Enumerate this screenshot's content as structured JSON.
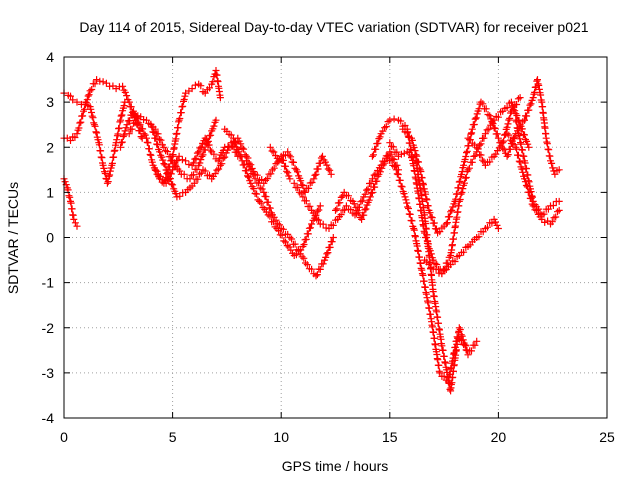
{
  "chart_data": {
    "type": "scatter",
    "title": "Day 114 of 2015, Sidereal Day-to-day VTEC variation (SDTVAR) for receiver p021",
    "xlabel": "GPS time / hours",
    "ylabel": "SDTVAR / TECUs",
    "xlim": [
      0,
      25
    ],
    "ylim": [
      -4,
      4
    ],
    "xticks": [
      "0",
      "5",
      "10",
      "15",
      "20",
      "25"
    ],
    "yticks": [
      "-4",
      "-3",
      "-2",
      "-1",
      "0",
      "1",
      "2",
      "3",
      "4"
    ],
    "grid": true,
    "legend": "none",
    "marker": "plus",
    "color": "#ff0000",
    "series": [
      {
        "x": [
          0.0,
          0.15,
          0.3,
          0.45,
          0.6
        ],
        "y": [
          1.3,
          1.1,
          0.8,
          0.4,
          0.25
        ]
      },
      {
        "x": [
          0.0,
          0.2,
          0.4,
          0.6,
          0.8,
          1.0,
          1.2,
          1.4,
          1.6,
          1.8,
          2.0,
          2.2,
          2.4,
          2.6,
          2.8
        ],
        "y": [
          3.2,
          3.15,
          3.05,
          3.0,
          2.95,
          3.0,
          2.9,
          2.5,
          2.1,
          1.6,
          1.2,
          1.6,
          2.1,
          2.6,
          3.0
        ]
      },
      {
        "x": [
          0.0,
          0.3,
          0.6,
          0.9,
          1.2,
          1.5,
          1.8,
          2.1,
          2.4,
          2.7,
          3.0,
          3.3,
          3.6
        ],
        "y": [
          2.2,
          2.15,
          2.3,
          2.8,
          3.25,
          3.5,
          3.45,
          3.35,
          3.3,
          3.35,
          3.0,
          2.6,
          2.2
        ]
      },
      {
        "x": [
          2.6,
          2.9,
          3.2,
          3.5,
          3.8,
          4.1,
          4.4,
          4.7,
          5.0,
          5.3,
          5.6,
          5.9,
          6.2,
          6.5,
          6.8,
          7.1,
          7.4,
          7.7,
          8.0
        ],
        "y": [
          2.0,
          2.5,
          2.8,
          2.5,
          2.2,
          1.6,
          1.3,
          1.2,
          1.5,
          1.8,
          1.7,
          1.6,
          1.9,
          2.2,
          1.9,
          1.7,
          2.0,
          2.1,
          1.8
        ]
      },
      {
        "x": [
          3.0,
          3.4,
          3.8,
          4.2,
          4.6,
          5.0,
          5.4,
          5.8,
          6.2,
          6.6,
          7.0
        ],
        "y": [
          2.3,
          2.7,
          2.6,
          2.4,
          2.0,
          1.7,
          1.4,
          1.3,
          1.6,
          2.1,
          2.6
        ]
      },
      {
        "x": [
          4.2,
          4.6,
          5.0,
          5.3,
          5.6,
          5.9,
          6.2,
          6.5,
          6.8,
          7.0,
          7.2
        ],
        "y": [
          1.5,
          1.2,
          1.8,
          2.6,
          3.2,
          3.3,
          3.4,
          3.2,
          3.4,
          3.7,
          3.1
        ]
      },
      {
        "x": [
          4.0,
          4.4,
          4.8,
          5.2,
          5.6,
          6.0,
          6.4,
          6.8,
          7.2,
          7.6,
          8.0,
          8.4,
          8.8,
          9.2,
          9.6,
          10.0,
          10.4
        ],
        "y": [
          2.5,
          1.9,
          1.4,
          0.9,
          1.0,
          1.2,
          1.5,
          1.3,
          1.6,
          2.0,
          2.2,
          1.8,
          1.4,
          1.2,
          1.5,
          1.8,
          1.3
        ]
      },
      {
        "x": [
          7.4,
          7.8,
          8.2,
          8.6,
          9.0,
          9.4,
          9.8,
          10.2,
          10.6,
          11.0,
          11.4,
          11.8
        ],
        "y": [
          2.4,
          2.2,
          1.7,
          1.2,
          0.8,
          0.5,
          0.2,
          -0.1,
          -0.4,
          -0.2,
          0.3,
          0.7
        ]
      },
      {
        "x": [
          8.4,
          8.8,
          9.2,
          9.6,
          10.0,
          10.4,
          10.8,
          11.2,
          11.6,
          12.0,
          12.4
        ],
        "y": [
          1.7,
          1.3,
          1.0,
          0.5,
          0.2,
          0.0,
          -0.3,
          -0.6,
          -0.85,
          -0.5,
          0.0
        ]
      },
      {
        "x": [
          9.5,
          9.9,
          10.3,
          10.7,
          11.1,
          11.5,
          11.9,
          12.3
        ],
        "y": [
          2.0,
          1.7,
          1.9,
          1.5,
          1.0,
          1.3,
          1.8,
          1.4
        ]
      },
      {
        "x": [
          10.6,
          11.0,
          11.4,
          11.8,
          12.2,
          12.6,
          13.0,
          13.4,
          13.8,
          14.2,
          14.6,
          15.0,
          15.4
        ],
        "y": [
          1.2,
          0.9,
          0.6,
          0.3,
          0.2,
          0.4,
          0.7,
          0.5,
          0.9,
          1.3,
          1.6,
          1.9,
          1.5
        ]
      },
      {
        "x": [
          12.5,
          12.9,
          13.3,
          13.7,
          14.1,
          14.5,
          14.9,
          15.3,
          15.7,
          16.1,
          16.5,
          16.9,
          17.3,
          17.7,
          18.1,
          18.5
        ],
        "y": [
          0.6,
          1.0,
          0.8,
          0.4,
          0.9,
          1.4,
          1.8,
          1.5,
          0.9,
          0.2,
          -0.8,
          -1.8,
          -3.0,
          -3.2,
          -2.2,
          -2.4
        ]
      },
      {
        "x": [
          14.2,
          14.6,
          15.0,
          15.4,
          15.8,
          16.2,
          16.6,
          17.0,
          17.4,
          17.8,
          18.2,
          18.6,
          19.0,
          19.4,
          19.8,
          20.0
        ],
        "y": [
          1.8,
          2.3,
          2.6,
          2.6,
          2.4,
          1.3,
          0.1,
          -0.5,
          -0.8,
          -0.6,
          -0.4,
          -0.2,
          0.0,
          0.2,
          0.4,
          0.2
        ]
      },
      {
        "x": [
          15.0,
          15.4,
          15.8,
          16.2,
          16.6,
          17.0,
          17.4,
          17.8,
          18.2,
          18.6,
          19.0
        ],
        "y": [
          2.1,
          1.8,
          1.9,
          1.7,
          0.5,
          -1.2,
          -2.4,
          -3.4,
          -2.0,
          -2.6,
          -2.3
        ]
      },
      {
        "x": [
          15.6,
          16.0,
          16.4,
          16.8,
          17.2,
          17.6,
          18.0,
          18.4,
          18.8,
          19.2,
          19.6,
          20.0,
          20.4,
          20.8,
          21.2
        ],
        "y": [
          2.4,
          2.2,
          1.5,
          0.6,
          0.1,
          0.3,
          0.8,
          1.6,
          2.4,
          3.0,
          2.7,
          2.2,
          1.8,
          2.3,
          2.6
        ]
      },
      {
        "x": [
          16.6,
          17.0,
          17.4,
          17.8,
          18.2,
          18.6,
          19.0,
          19.4,
          19.8,
          20.2,
          20.6,
          21.0,
          21.4
        ],
        "y": [
          -0.5,
          -0.7,
          -0.8,
          -0.4,
          0.8,
          1.5,
          1.9,
          2.3,
          2.6,
          2.8,
          3.0,
          2.5,
          2.0
        ]
      },
      {
        "x": [
          18.6,
          19.0,
          19.4,
          19.8,
          20.2,
          20.6,
          21.0
        ],
        "y": [
          2.2,
          2.0,
          1.6,
          1.8,
          2.1,
          2.8,
          3.1
        ]
      },
      {
        "x": [
          20.4,
          20.8,
          21.2,
          21.6,
          22.0,
          22.4,
          22.8
        ],
        "y": [
          2.3,
          2.0,
          1.3,
          0.7,
          0.4,
          0.3,
          0.6
        ]
      },
      {
        "x": [
          20.8,
          21.2,
          21.6,
          22.0,
          22.4,
          22.8
        ],
        "y": [
          2.6,
          1.7,
          0.8,
          0.5,
          0.7,
          0.8
        ]
      },
      {
        "x": [
          21.2,
          21.6,
          21.8,
          22.0,
          22.2,
          22.4,
          22.6,
          22.8
        ],
        "y": [
          2.6,
          3.1,
          3.5,
          3.0,
          2.2,
          1.7,
          1.4,
          1.5
        ]
      }
    ]
  }
}
